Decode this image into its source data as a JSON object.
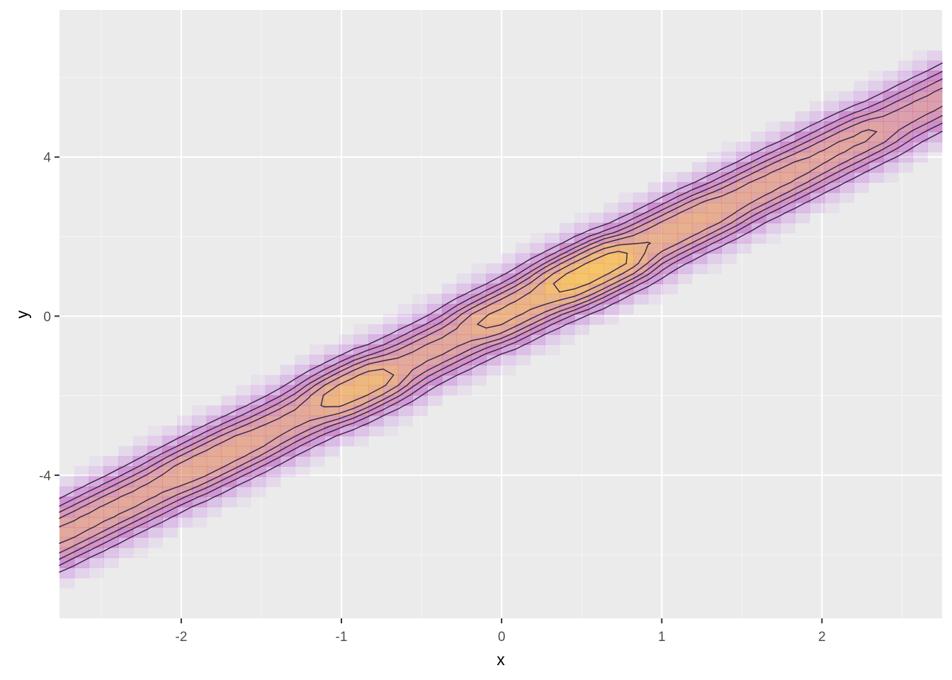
{
  "chart_data": {
    "type": "heatmap",
    "subtype": "2d density raster with contour lines",
    "xlabel": "x",
    "ylabel": "y",
    "xlim": [
      -2.76,
      2.75
    ],
    "ylim": [
      -7.6,
      7.7
    ],
    "x_ticks": [
      {
        "value": -2,
        "label": "-2"
      },
      {
        "value": -1,
        "label": "-1"
      },
      {
        "value": 0,
        "label": "0"
      },
      {
        "value": 1,
        "label": "1"
      },
      {
        "value": 2,
        "label": "2"
      }
    ],
    "y_ticks": [
      {
        "value": -4,
        "label": "-4"
      },
      {
        "value": 0,
        "label": "0"
      },
      {
        "value": 4,
        "label": "4"
      }
    ],
    "x_minor": [
      -2.5,
      -1.5,
      -0.5,
      0.5,
      1.5,
      2.5
    ],
    "y_minor": [
      -6,
      -2,
      2,
      6
    ],
    "grid": true,
    "trend": {
      "slope": 2,
      "intercept": 0
    },
    "density_band": {
      "sd": 0.55
    },
    "density_peaks": [
      {
        "x": -2.35,
        "y": -4.65,
        "density": 0.62
      },
      {
        "x": -1.75,
        "y": -3.45,
        "density": 0.68
      },
      {
        "x": -1.35,
        "y": -2.45,
        "density": 0.62
      },
      {
        "x": -0.95,
        "y": -1.8,
        "density": 0.85
      },
      {
        "x": -0.45,
        "y": -0.9,
        "density": 0.62
      },
      {
        "x": 0.1,
        "y": 0.25,
        "density": 0.78
      },
      {
        "x": 0.55,
        "y": 1.0,
        "density": 1.0
      },
      {
        "x": 1.1,
        "y": 2.1,
        "density": 0.72
      },
      {
        "x": 1.7,
        "y": 3.35,
        "density": 0.64
      },
      {
        "x": 2.05,
        "y": 4.1,
        "density": 0.6
      },
      {
        "x": 2.7,
        "y": 5.4,
        "density": 0.5
      }
    ],
    "contour_levels": [
      0.15,
      0.25,
      0.35,
      0.45,
      0.57,
      0.72,
      0.88
    ],
    "colors": {
      "panel": "#ebebeb",
      "grid_major": "#ffffff",
      "grid_minor": "#f5f5f5",
      "low": "#a020f0",
      "high": "#ffa500",
      "contour": "#3a2a4a"
    }
  }
}
